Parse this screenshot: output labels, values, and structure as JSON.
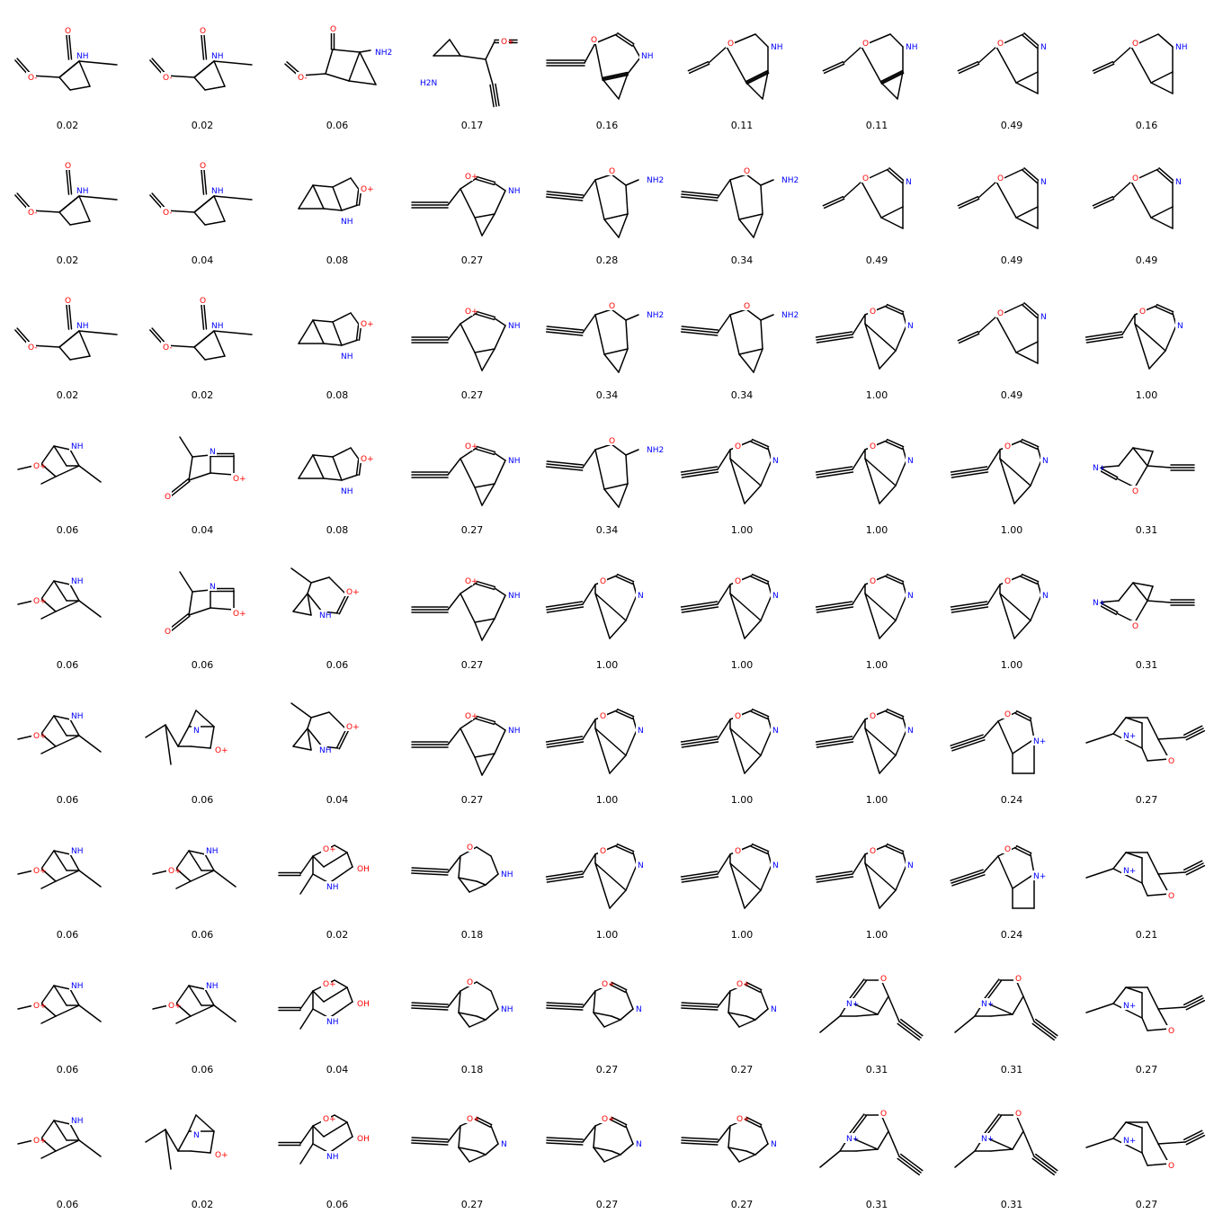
{
  "colors": {
    "bond": "#000000",
    "O": "#ff0000",
    "N": "#0000ff",
    "text": "#000000"
  },
  "molecules": [
    {
      "score": "0.02",
      "t": "A"
    },
    {
      "score": "0.02",
      "t": "A"
    },
    {
      "score": "0.06",
      "t": "B"
    },
    {
      "score": "0.17",
      "t": "C"
    },
    {
      "score": "0.16",
      "t": "D"
    },
    {
      "score": "0.11",
      "t": "E"
    },
    {
      "score": "0.11",
      "t": "E"
    },
    {
      "score": "0.49",
      "t": "F"
    },
    {
      "score": "0.16",
      "t": "G"
    },
    {
      "score": "0.02",
      "t": "A"
    },
    {
      "score": "0.04",
      "t": "A"
    },
    {
      "score": "0.08",
      "t": "H"
    },
    {
      "score": "0.27",
      "t": "I"
    },
    {
      "score": "0.28",
      "t": "J"
    },
    {
      "score": "0.34",
      "t": "J"
    },
    {
      "score": "0.49",
      "t": "F"
    },
    {
      "score": "0.49",
      "t": "F"
    },
    {
      "score": "0.49",
      "t": "F"
    },
    {
      "score": "0.02",
      "t": "A"
    },
    {
      "score": "0.02",
      "t": "A"
    },
    {
      "score": "0.08",
      "t": "H"
    },
    {
      "score": "0.27",
      "t": "I"
    },
    {
      "score": "0.34",
      "t": "J"
    },
    {
      "score": "0.34",
      "t": "J"
    },
    {
      "score": "1.00",
      "t": "K"
    },
    {
      "score": "0.49",
      "t": "F"
    },
    {
      "score": "1.00",
      "t": "K"
    },
    {
      "score": "0.06",
      "t": "L"
    },
    {
      "score": "0.04",
      "t": "M"
    },
    {
      "score": "0.08",
      "t": "H"
    },
    {
      "score": "0.27",
      "t": "I"
    },
    {
      "score": "0.34",
      "t": "J"
    },
    {
      "score": "1.00",
      "t": "K"
    },
    {
      "score": "1.00",
      "t": "K"
    },
    {
      "score": "1.00",
      "t": "K"
    },
    {
      "score": "0.31",
      "t": "N"
    },
    {
      "score": "0.06",
      "t": "L"
    },
    {
      "score": "0.06",
      "t": "M"
    },
    {
      "score": "0.06",
      "t": "O"
    },
    {
      "score": "0.27",
      "t": "I"
    },
    {
      "score": "1.00",
      "t": "K"
    },
    {
      "score": "1.00",
      "t": "K"
    },
    {
      "score": "1.00",
      "t": "K"
    },
    {
      "score": "1.00",
      "t": "K"
    },
    {
      "score": "0.31",
      "t": "N"
    },
    {
      "score": "0.06",
      "t": "L"
    },
    {
      "score": "0.06",
      "t": "P"
    },
    {
      "score": "0.04",
      "t": "O"
    },
    {
      "score": "0.27",
      "t": "I"
    },
    {
      "score": "1.00",
      "t": "K"
    },
    {
      "score": "1.00",
      "t": "K"
    },
    {
      "score": "1.00",
      "t": "K"
    },
    {
      "score": "0.24",
      "t": "Q"
    },
    {
      "score": "0.27",
      "t": "R"
    },
    {
      "score": "0.06",
      "t": "L"
    },
    {
      "score": "0.06",
      "t": "L"
    },
    {
      "score": "0.02",
      "t": "S"
    },
    {
      "score": "0.18",
      "t": "T"
    },
    {
      "score": "1.00",
      "t": "K"
    },
    {
      "score": "1.00",
      "t": "K"
    },
    {
      "score": "1.00",
      "t": "K"
    },
    {
      "score": "0.24",
      "t": "Q"
    },
    {
      "score": "0.21",
      "t": "R"
    },
    {
      "score": "0.06",
      "t": "L"
    },
    {
      "score": "0.06",
      "t": "L"
    },
    {
      "score": "0.04",
      "t": "S"
    },
    {
      "score": "0.18",
      "t": "T"
    },
    {
      "score": "0.27",
      "t": "U"
    },
    {
      "score": "0.27",
      "t": "U"
    },
    {
      "score": "0.31",
      "t": "V"
    },
    {
      "score": "0.31",
      "t": "V"
    },
    {
      "score": "0.27",
      "t": "R"
    },
    {
      "score": "0.06",
      "t": "L"
    },
    {
      "score": "0.02",
      "t": "P"
    },
    {
      "score": "0.06",
      "t": "S"
    },
    {
      "score": "0.27",
      "t": "U"
    },
    {
      "score": "0.27",
      "t": "U"
    },
    {
      "score": "0.27",
      "t": "U"
    },
    {
      "score": "0.31",
      "t": "V"
    },
    {
      "score": "0.31",
      "t": "V"
    },
    {
      "score": "0.27",
      "t": "R"
    }
  ]
}
